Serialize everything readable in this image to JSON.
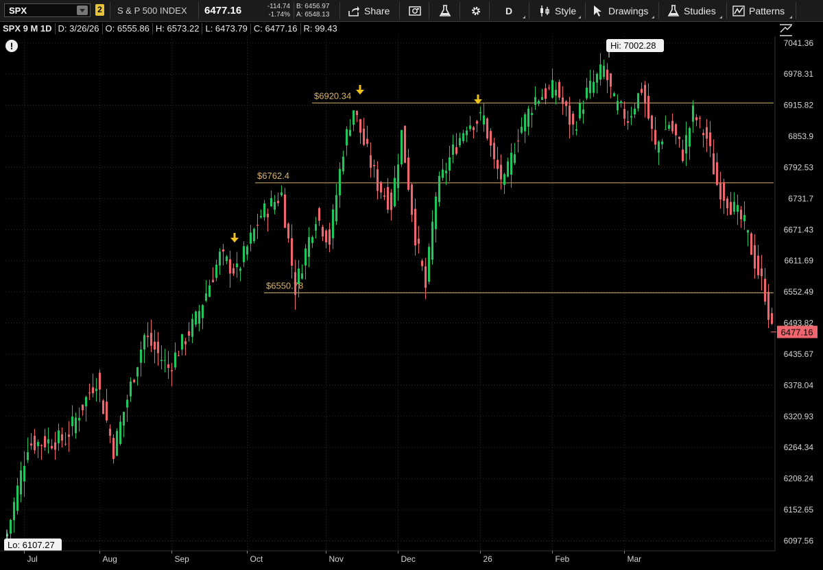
{
  "toolbar": {
    "symbol": "SPX",
    "link_group": "2",
    "description": "S & P 500 INDEX",
    "last_price": "6477.16",
    "net_change": "-114.74",
    "pct_change": "-1.74%",
    "bid": "B: 6456.97",
    "ask": "A: 6548.13",
    "share_label": "Share",
    "period_label": "D",
    "style_label": "Style",
    "drawings_label": "Drawings",
    "studies_label": "Studies",
    "patterns_label": "Patterns"
  },
  "infobar": {
    "title": "SPX 9 M 1D",
    "date": "D: 3/26/26",
    "open": "O: 6555.86",
    "high": "H: 6573.22",
    "low": "L: 6473.79",
    "close": "C: 6477.16",
    "range": "R: 99.43"
  },
  "colors": {
    "up": "#22c55e",
    "down": "#f0666f",
    "background": "#000000",
    "level_line": "#d9b36b",
    "arrow": "#f0c21e",
    "last_price_bg": "#f0666f"
  },
  "chart_data": {
    "type": "candlestick",
    "x_labels": [
      "Jul",
      "Aug",
      "Sep",
      "Oct",
      "Nov",
      "Dec",
      "26",
      "Feb",
      "Mar"
    ],
    "y_ticks": [
      7041.36,
      6978.31,
      6915.82,
      6853.9,
      6792.53,
      6731.7,
      6671.43,
      6611.69,
      6552.49,
      6493.82,
      6435.67,
      6378.04,
      6320.93,
      6264.34,
      6208.24,
      6152.65,
      6097.56
    ],
    "y_scale": "log",
    "ylim": [
      6080,
      7055
    ],
    "last_price_label": "6477.16",
    "high_label": "Hi: 7002.28",
    "low_label": "Lo: 6107.27",
    "levels": [
      {
        "label": "$6920.34",
        "value": 6920.34
      },
      {
        "label": "$6762.4",
        "value": 6762.4
      },
      {
        "label": "$6550.78",
        "value": 6550.78
      }
    ],
    "path_anchors": [
      {
        "bar": 0,
        "close": 6110
      },
      {
        "bar": 6,
        "close": 6270
      },
      {
        "bar": 17,
        "close": 6280
      },
      {
        "bar": 26,
        "close": 6390
      },
      {
        "bar": 31,
        "close": 6260
      },
      {
        "bar": 40,
        "close": 6470
      },
      {
        "bar": 47,
        "close": 6410
      },
      {
        "bar": 55,
        "close": 6500
      },
      {
        "bar": 62,
        "close": 6620
      },
      {
        "bar": 67,
        "close": 6590
      },
      {
        "bar": 74,
        "close": 6700
      },
      {
        "bar": 80,
        "close": 6740
      },
      {
        "bar": 84,
        "close": 6560
      },
      {
        "bar": 90,
        "close": 6700
      },
      {
        "bar": 94,
        "close": 6650
      },
      {
        "bar": 98,
        "close": 6830
      },
      {
        "bar": 101,
        "close": 6910
      },
      {
        "bar": 104,
        "close": 6840
      },
      {
        "bar": 108,
        "close": 6760
      },
      {
        "bar": 112,
        "close": 6720
      },
      {
        "bar": 115,
        "close": 6860
      },
      {
        "bar": 119,
        "close": 6660
      },
      {
        "bar": 122,
        "close": 6560
      },
      {
        "bar": 125,
        "close": 6740
      },
      {
        "bar": 129,
        "close": 6810
      },
      {
        "bar": 134,
        "close": 6880
      },
      {
        "bar": 139,
        "close": 6890
      },
      {
        "bar": 142,
        "close": 6800
      },
      {
        "bar": 145,
        "close": 6760
      },
      {
        "bar": 149,
        "close": 6860
      },
      {
        "bar": 154,
        "close": 6930
      },
      {
        "bar": 160,
        "close": 6950
      },
      {
        "bar": 165,
        "close": 6870
      },
      {
        "bar": 169,
        "close": 6940
      },
      {
        "bar": 174,
        "close": 6990
      },
      {
        "bar": 177,
        "close": 6920
      },
      {
        "bar": 181,
        "close": 6890
      },
      {
        "bar": 185,
        "close": 6950
      },
      {
        "bar": 189,
        "close": 6830
      },
      {
        "bar": 193,
        "close": 6880
      },
      {
        "bar": 197,
        "close": 6820
      },
      {
        "bar": 200,
        "close": 6900
      },
      {
        "bar": 204,
        "close": 6850
      },
      {
        "bar": 207,
        "close": 6760
      },
      {
        "bar": 211,
        "close": 6720
      },
      {
        "bar": 215,
        "close": 6680
      },
      {
        "bar": 218,
        "close": 6610
      },
      {
        "bar": 221,
        "close": 6550
      },
      {
        "bar": 223,
        "close": 6477.16
      }
    ],
    "bar_count": 224
  }
}
